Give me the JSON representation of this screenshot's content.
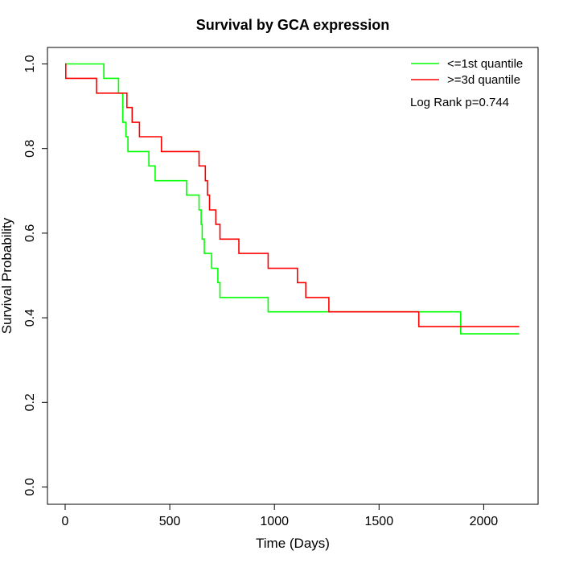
{
  "chart_data": {
    "type": "line",
    "title": "Survival by GCA expression",
    "xlabel": "Time (Days)",
    "ylabel": "Survival Probability",
    "xlim": [
      0,
      2200
    ],
    "ylim": [
      0,
      1
    ],
    "x_ticks": [
      "0",
      "500",
      "1000",
      "1500",
      "2000"
    ],
    "y_ticks": [
      "0.0",
      "0.2",
      "0.4",
      "0.6",
      "0.8",
      "1.0"
    ],
    "legend_position": "top-right",
    "annotation": "Log Rank p=0.744",
    "series": [
      {
        "name": "<=1st quantile",
        "color": "#00ff00",
        "step": true,
        "x": [
          0,
          185,
          255,
          275,
          290,
          300,
          400,
          430,
          580,
          640,
          650,
          655,
          665,
          700,
          730,
          740,
          970,
          1890,
          2170
        ],
        "y": [
          1.0,
          0.966,
          0.931,
          0.862,
          0.828,
          0.793,
          0.759,
          0.724,
          0.69,
          0.655,
          0.621,
          0.586,
          0.552,
          0.517,
          0.483,
          0.448,
          0.414,
          0.362,
          0.362
        ]
      },
      {
        "name": ">=3d quantile",
        "color": "#ff0000",
        "step": true,
        "x": [
          0,
          3,
          150,
          295,
          320,
          355,
          460,
          640,
          670,
          680,
          690,
          720,
          740,
          770,
          830,
          970,
          1110,
          1150,
          1260,
          1690,
          2170
        ],
        "y": [
          1.0,
          0.966,
          0.931,
          0.897,
          0.862,
          0.828,
          0.793,
          0.759,
          0.724,
          0.69,
          0.655,
          0.621,
          0.586,
          0.586,
          0.552,
          0.517,
          0.483,
          0.448,
          0.414,
          0.379,
          0.379
        ]
      }
    ]
  }
}
